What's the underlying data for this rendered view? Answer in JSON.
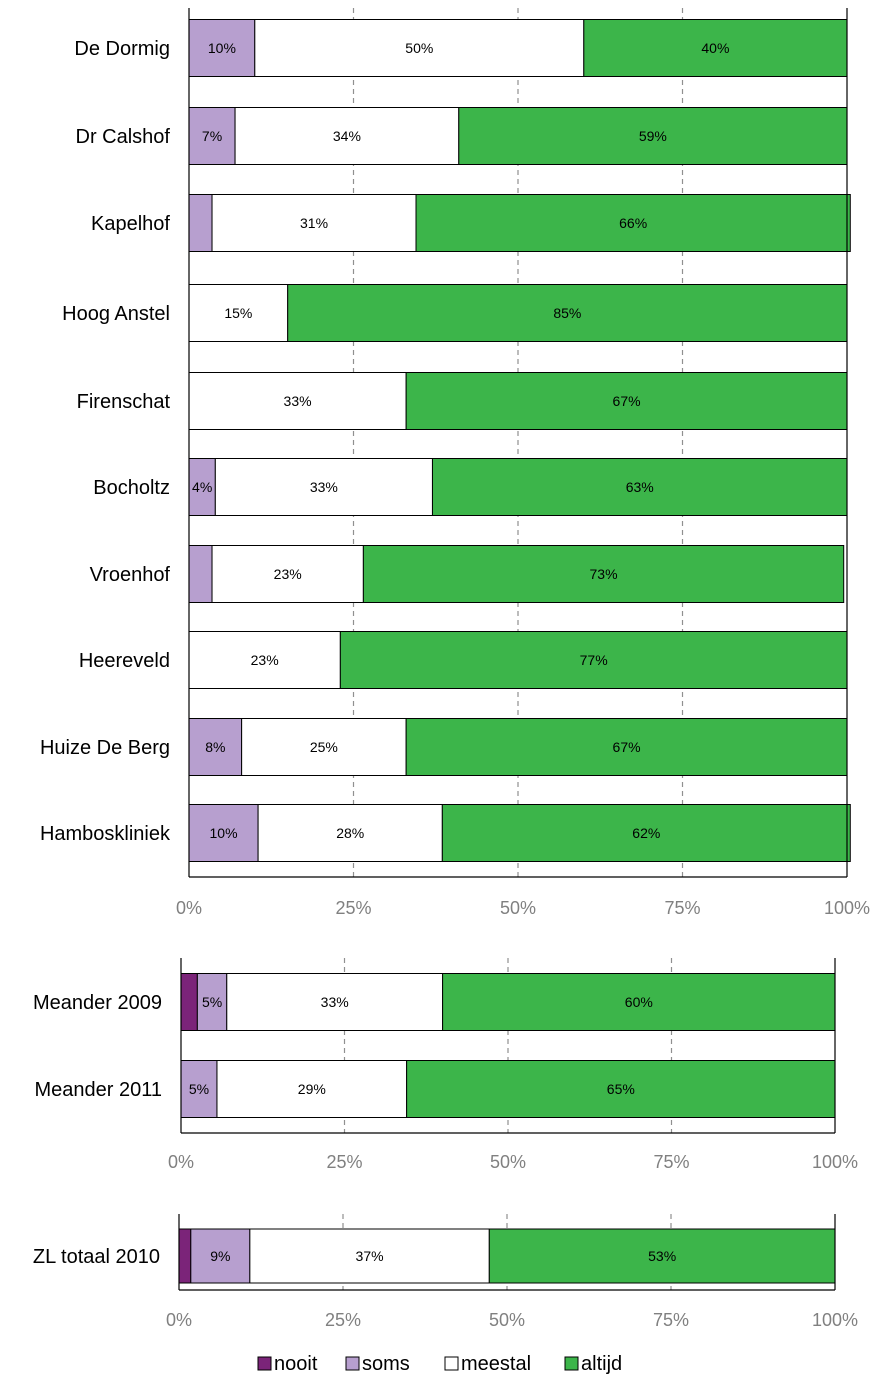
{
  "colors": {
    "nooit": "#7b2479",
    "soms": "#b79fcf",
    "meestal": "#ffffff",
    "altijd": "#3cb54a",
    "grid": "#909090",
    "axis_tick_text": "#808080"
  },
  "legend": [
    {
      "key": "nooit",
      "label": "nooit"
    },
    {
      "key": "soms",
      "label": "soms"
    },
    {
      "key": "meestal",
      "label": "meestal"
    },
    {
      "key": "altijd",
      "label": "altijd"
    }
  ],
  "chart_data": [
    {
      "type": "bar",
      "orientation": "horizontal",
      "stacked": "percent",
      "xlim": [
        0,
        100
      ],
      "x_ticks": [
        "0%",
        "25%",
        "50%",
        "75%",
        "100%"
      ],
      "grid": "vertical dashed",
      "categories": [
        "De Dormig",
        "Dr Calshof",
        "Kapelhof",
        "Hoog Anstel",
        "Firenschat",
        "Bocholtz",
        "Vroenhof",
        "Heereveld",
        "Huize De Berg",
        "Hamboskliniek"
      ],
      "series": [
        {
          "name": "nooit",
          "values": [
            0,
            0,
            0,
            0,
            0,
            0,
            0,
            0,
            0,
            0
          ],
          "labels": [
            "",
            "",
            "",
            "",
            "",
            "",
            "",
            "",
            "",
            ""
          ]
        },
        {
          "name": "soms",
          "values": [
            10,
            7,
            3.5,
            0,
            0,
            4,
            3.5,
            0,
            8,
            10.5
          ],
          "labels": [
            "10%",
            "7%",
            "",
            "",
            "",
            "4%",
            "",
            "",
            "8%",
            "10%"
          ]
        },
        {
          "name": "meestal",
          "values": [
            50,
            34,
            31,
            15,
            33,
            33,
            23,
            23,
            25,
            28
          ],
          "labels": [
            "50%",
            "34%",
            "31%",
            "15%",
            "33%",
            "33%",
            "23%",
            "23%",
            "25%",
            "28%"
          ]
        },
        {
          "name": "altijd",
          "values": [
            40,
            59,
            66,
            85,
            67,
            63,
            73,
            77,
            67,
            62
          ],
          "labels": [
            "40%",
            "59%",
            "66%",
            "85%",
            "67%",
            "63%",
            "73%",
            "77%",
            "67%",
            "62%"
          ]
        }
      ]
    },
    {
      "type": "bar",
      "orientation": "horizontal",
      "stacked": "percent",
      "xlim": [
        0,
        100
      ],
      "x_ticks": [
        "0%",
        "25%",
        "50%",
        "75%",
        "100%"
      ],
      "grid": "vertical dashed",
      "categories": [
        "Meander 2009",
        "Meander 2011"
      ],
      "series": [
        {
          "name": "nooit",
          "values": [
            2.5,
            0
          ],
          "labels": [
            "",
            ""
          ]
        },
        {
          "name": "soms",
          "values": [
            4.5,
            5.5
          ],
          "labels": [
            "5%",
            "5%"
          ]
        },
        {
          "name": "meestal",
          "values": [
            33,
            29
          ],
          "labels": [
            "33%",
            "29%"
          ]
        },
        {
          "name": "altijd",
          "values": [
            60,
            65.5
          ],
          "labels": [
            "60%",
            "65%"
          ]
        }
      ]
    },
    {
      "type": "bar",
      "orientation": "horizontal",
      "stacked": "percent",
      "xlim": [
        0,
        100
      ],
      "x_ticks": [
        "0%",
        "25%",
        "50%",
        "75%",
        "100%"
      ],
      "grid": "vertical dashed",
      "categories": [
        "ZL totaal 2010"
      ],
      "series": [
        {
          "name": "nooit",
          "values": [
            1.8
          ],
          "labels": [
            ""
          ]
        },
        {
          "name": "soms",
          "values": [
            9
          ],
          "labels": [
            "9%"
          ]
        },
        {
          "name": "meestal",
          "values": [
            36.5
          ],
          "labels": [
            "37%"
          ]
        },
        {
          "name": "altijd",
          "values": [
            52.7
          ],
          "labels": [
            "53%"
          ]
        }
      ]
    }
  ]
}
